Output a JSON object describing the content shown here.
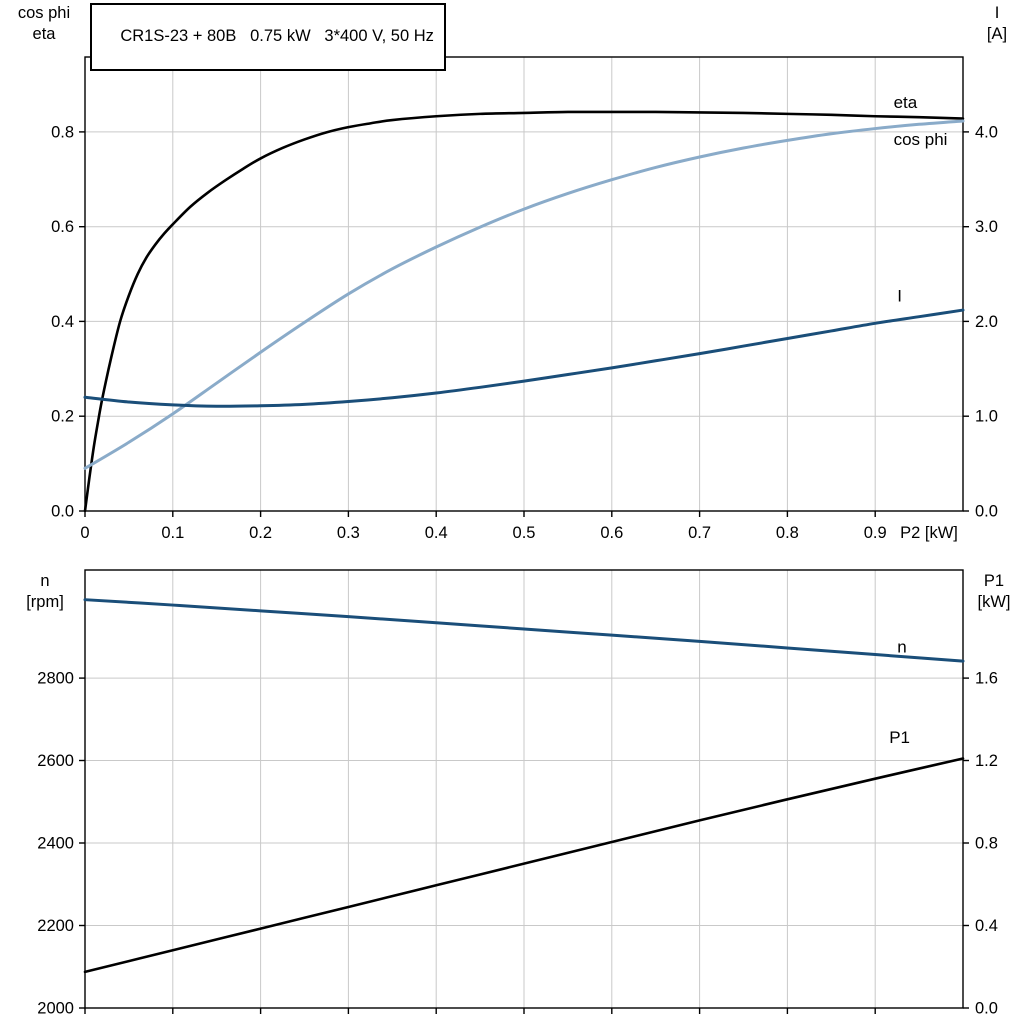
{
  "colors": {
    "black": "#000000",
    "light_blue": "#8aabc9",
    "dark_blue": "#1a4e79",
    "grid": "#c9c9c9",
    "axis": "#000000",
    "background": "#ffffff"
  },
  "chart_data": [
    {
      "type": "line",
      "title": "CR1S-23 + 80B   0.75 kW   3*400 V, 50 Hz",
      "grid": true,
      "legend_position": "inline-labels",
      "x_axis": {
        "label": "P2 [kW]",
        "range": [
          0,
          1.0
        ],
        "tick_values": [
          0,
          0.1,
          0.2,
          0.3,
          0.4,
          0.5,
          0.6,
          0.7,
          0.8,
          0.9
        ],
        "tick_labels": [
          "0",
          "0.1",
          "0.2",
          "0.3",
          "0.4",
          "0.5",
          "0.6",
          "0.7",
          "0.8",
          "0.9"
        ],
        "show_tick_labels": true
      },
      "left_axis": {
        "title_lines": [
          "cos phi",
          "eta"
        ],
        "range": [
          0,
          0.958
        ],
        "tick_values": [
          0,
          0.2,
          0.4,
          0.6,
          0.8
        ],
        "tick_labels": [
          "0.0",
          "0.2",
          "0.4",
          "0.6",
          "0.8"
        ]
      },
      "right_axis": {
        "title_lines": [
          "I",
          "[A]"
        ],
        "range": [
          0,
          4.79
        ],
        "tick_values": [
          0,
          1,
          2,
          3,
          4
        ],
        "tick_labels": [
          "0.0",
          "1.0",
          "2.0",
          "3.0",
          "4.0"
        ]
      },
      "series": [
        {
          "id": "eta",
          "name": "eta",
          "axis": "left",
          "color_key": "black",
          "label": {
            "text": "eta",
            "x": 0.921,
            "y": 0.85
          },
          "points": [
            [
              0,
              0
            ],
            [
              0.005,
              0.07
            ],
            [
              0.01,
              0.135
            ],
            [
              0.015,
              0.19
            ],
            [
              0.02,
              0.24
            ],
            [
              0.03,
              0.325
            ],
            [
              0.04,
              0.4
            ],
            [
              0.05,
              0.455
            ],
            [
              0.06,
              0.5
            ],
            [
              0.07,
              0.535
            ],
            [
              0.08,
              0.562
            ],
            [
              0.09,
              0.585
            ],
            [
              0.1,
              0.605
            ],
            [
              0.12,
              0.642
            ],
            [
              0.14,
              0.672
            ],
            [
              0.16,
              0.698
            ],
            [
              0.18,
              0.722
            ],
            [
              0.2,
              0.744
            ],
            [
              0.225,
              0.766
            ],
            [
              0.25,
              0.784
            ],
            [
              0.275,
              0.799
            ],
            [
              0.3,
              0.81
            ],
            [
              0.325,
              0.818
            ],
            [
              0.35,
              0.825
            ],
            [
              0.4,
              0.833
            ],
            [
              0.45,
              0.838
            ],
            [
              0.5,
              0.84
            ],
            [
              0.55,
              0.842
            ],
            [
              0.6,
              0.842
            ],
            [
              0.65,
              0.842
            ],
            [
              0.7,
              0.841
            ],
            [
              0.75,
              0.84
            ],
            [
              0.8,
              0.838
            ],
            [
              0.85,
              0.836
            ],
            [
              0.9,
              0.833
            ],
            [
              0.95,
              0.831
            ],
            [
              1.0,
              0.828
            ]
          ]
        },
        {
          "id": "cos-phi",
          "name": "cos phi",
          "axis": "left",
          "color_key": "light_blue",
          "label": {
            "text": "cos phi",
            "x": 0.921,
            "y": 0.772
          },
          "points": [
            [
              0,
              0.09
            ],
            [
              0.05,
              0.145
            ],
            [
              0.1,
              0.205
            ],
            [
              0.15,
              0.27
            ],
            [
              0.2,
              0.335
            ],
            [
              0.25,
              0.398
            ],
            [
              0.3,
              0.458
            ],
            [
              0.35,
              0.511
            ],
            [
              0.4,
              0.557
            ],
            [
              0.45,
              0.599
            ],
            [
              0.5,
              0.637
            ],
            [
              0.55,
              0.67
            ],
            [
              0.6,
              0.699
            ],
            [
              0.65,
              0.725
            ],
            [
              0.7,
              0.747
            ],
            [
              0.75,
              0.766
            ],
            [
              0.8,
              0.782
            ],
            [
              0.85,
              0.796
            ],
            [
              0.9,
              0.807
            ],
            [
              0.95,
              0.816
            ],
            [
              1.0,
              0.823
            ]
          ]
        },
        {
          "id": "i",
          "name": "I",
          "axis": "right",
          "color_key": "dark_blue",
          "label": {
            "text": "I",
            "x": 0.925,
            "y": 2.21
          },
          "points": [
            [
              0,
              1.2
            ],
            [
              0.05,
              1.15
            ],
            [
              0.1,
              1.12
            ],
            [
              0.15,
              1.105
            ],
            [
              0.2,
              1.11
            ],
            [
              0.25,
              1.125
            ],
            [
              0.3,
              1.155
            ],
            [
              0.35,
              1.195
            ],
            [
              0.4,
              1.245
            ],
            [
              0.45,
              1.305
            ],
            [
              0.5,
              1.37
            ],
            [
              0.55,
              1.44
            ],
            [
              0.6,
              1.51
            ],
            [
              0.65,
              1.585
            ],
            [
              0.7,
              1.66
            ],
            [
              0.75,
              1.74
            ],
            [
              0.8,
              1.82
            ],
            [
              0.85,
              1.9
            ],
            [
              0.9,
              1.98
            ],
            [
              0.95,
              2.05
            ],
            [
              1.0,
              2.12
            ]
          ]
        }
      ]
    },
    {
      "type": "line",
      "title": "",
      "grid": true,
      "legend_position": "inline-labels",
      "x_axis": {
        "label": "",
        "range": [
          0,
          1.0
        ],
        "tick_values": [
          0,
          0.1,
          0.2,
          0.3,
          0.4,
          0.5,
          0.6,
          0.7,
          0.8,
          0.9
        ],
        "tick_labels": [],
        "show_tick_labels": false
      },
      "left_axis": {
        "title_lines": [
          "n",
          "[rpm]"
        ],
        "range": [
          2000,
          3062
        ],
        "tick_values": [
          2000,
          2200,
          2400,
          2600,
          2800
        ],
        "tick_labels": [
          "2000",
          "2200",
          "2400",
          "2600",
          "2800"
        ]
      },
      "right_axis": {
        "title_lines": [
          "P1",
          "[kW]"
        ],
        "range": [
          0,
          2.124
        ],
        "tick_values": [
          0,
          0.4,
          0.8,
          1.2,
          1.6
        ],
        "tick_labels": [
          "0.0",
          "0.4",
          "0.8",
          "1.2",
          "1.6"
        ]
      },
      "series": [
        {
          "id": "n",
          "name": "n",
          "axis": "left",
          "color_key": "dark_blue",
          "label": {
            "text": "n",
            "x": 0.925,
            "y": 2862
          },
          "points": [
            [
              0,
              2990
            ],
            [
              0.1,
              2977
            ],
            [
              0.2,
              2963
            ],
            [
              0.3,
              2949
            ],
            [
              0.4,
              2934
            ],
            [
              0.5,
              2919
            ],
            [
              0.6,
              2904
            ],
            [
              0.7,
              2889
            ],
            [
              0.8,
              2873
            ],
            [
              0.9,
              2857
            ],
            [
              1.0,
              2841
            ]
          ]
        },
        {
          "id": "p1",
          "name": "P1",
          "axis": "right",
          "color_key": "black",
          "label": {
            "text": "P1",
            "x": 0.916,
            "y": 1.285
          },
          "points": [
            [
              0,
              0.175
            ],
            [
              0.1,
              0.28
            ],
            [
              0.2,
              0.385
            ],
            [
              0.3,
              0.49
            ],
            [
              0.4,
              0.595
            ],
            [
              0.5,
              0.7
            ],
            [
              0.6,
              0.805
            ],
            [
              0.7,
              0.91
            ],
            [
              0.8,
              1.012
            ],
            [
              0.9,
              1.112
            ],
            [
              1.0,
              1.21
            ]
          ]
        }
      ]
    }
  ]
}
